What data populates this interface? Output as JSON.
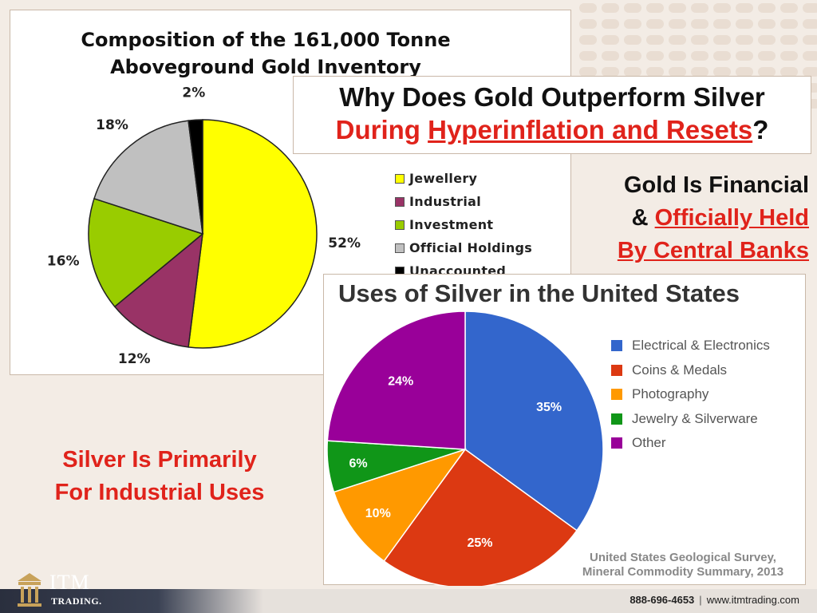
{
  "slide": {
    "headline_line1": "Why Does Gold Outperform Silver",
    "headline_line2_prefix": "During ",
    "headline_line2_underlined": "Hyperinflation and Resets",
    "headline_line2_suffix": "?",
    "gold_note_line1": "Gold Is Financial",
    "gold_note_amp": "& ",
    "gold_note_line2": "Officially Held",
    "gold_note_line3": "By Central Banks",
    "silver_note_line1": "Silver Is Primarily",
    "silver_note_line2": "For Industrial Uses"
  },
  "footer": {
    "logo_name": "ITM",
    "logo_sub": "TRADING.",
    "phone": "888-696-4653",
    "separator": "|",
    "website": "www.itmtrading.com"
  },
  "chart_data": [
    {
      "type": "pie",
      "title_line1": "Composition of the 161,000 Tonne",
      "title_line2": "Aboveground Gold Inventory",
      "categories": [
        "Jewellery",
        "Industrial",
        "Investment",
        "Official Holdings",
        "Unaccounted"
      ],
      "values": [
        52,
        12,
        16,
        18,
        2
      ],
      "labels": [
        "52%",
        "12%",
        "16%",
        "18%",
        "2%"
      ],
      "colors": [
        "#ffff00",
        "#993366",
        "#99cc00",
        "#c0c0c0",
        "#000000"
      ],
      "legend_position": "right"
    },
    {
      "type": "pie",
      "title": "Uses of Silver in the United States",
      "categories": [
        "Electrical & Electronics",
        "Coins & Medals",
        "Photography",
        "Jewelry & Silverware",
        "Other"
      ],
      "values": [
        35,
        25,
        10,
        6,
        24
      ],
      "labels": [
        "35%",
        "25%",
        "10%",
        "6%",
        "24%"
      ],
      "colors": [
        "#3366cc",
        "#dc3912",
        "#ff9900",
        "#109618",
        "#990099"
      ],
      "legend_position": "right",
      "source_line1": "United States Geological Survey,",
      "source_line2": "Mineral Commodity Summary, 2013"
    }
  ]
}
